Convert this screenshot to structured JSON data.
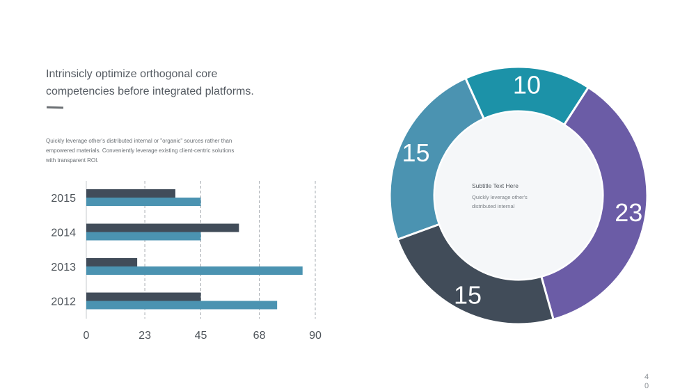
{
  "headline": {
    "line1": "Intrinsicly optimize orthogonal core",
    "line2": "competencies before integrated platforms."
  },
  "body": {
    "line1": "Quickly leverage  other's distributed internal or \"organic\" sources rather than",
    "line2": "empowered  materials.  Conveniently  leverage  existing client-centric solutions",
    "line3": "with transparent ROI."
  },
  "donut_center": {
    "title": "Subtitle  Text Here",
    "line1": "Quickly leverage  other's",
    "line2": "distributed internal"
  },
  "page_number": "40",
  "colors": {
    "dark": "#414c59",
    "light": "#4b93b1",
    "teal": "#1c92a8",
    "purple": "#6b5ca6",
    "center_fill": "#f5f7f9"
  },
  "chart_data": [
    {
      "type": "bar",
      "orientation": "horizontal",
      "categories": [
        "2015",
        "2014",
        "2013",
        "2012"
      ],
      "series": [
        {
          "values": [
            35,
            60,
            20,
            45
          ],
          "color": "#414c59"
        },
        {
          "values": [
            45,
            45,
            85,
            75
          ],
          "color": "#4b93b1"
        }
      ],
      "xticks": [
        0,
        23,
        45,
        68,
        90
      ],
      "xlim": [
        0,
        90
      ],
      "grid": "vertical dashed"
    },
    {
      "type": "pie",
      "style": "donut",
      "slices": [
        {
          "value": 15,
          "label": "15",
          "color": "#4b93b1"
        },
        {
          "value": 10,
          "label": "10",
          "color": "#1c92a8"
        },
        {
          "value": 23,
          "label": "23",
          "color": "#6b5ca6"
        },
        {
          "value": 15,
          "label": "15",
          "color": "#414c59"
        }
      ]
    }
  ]
}
